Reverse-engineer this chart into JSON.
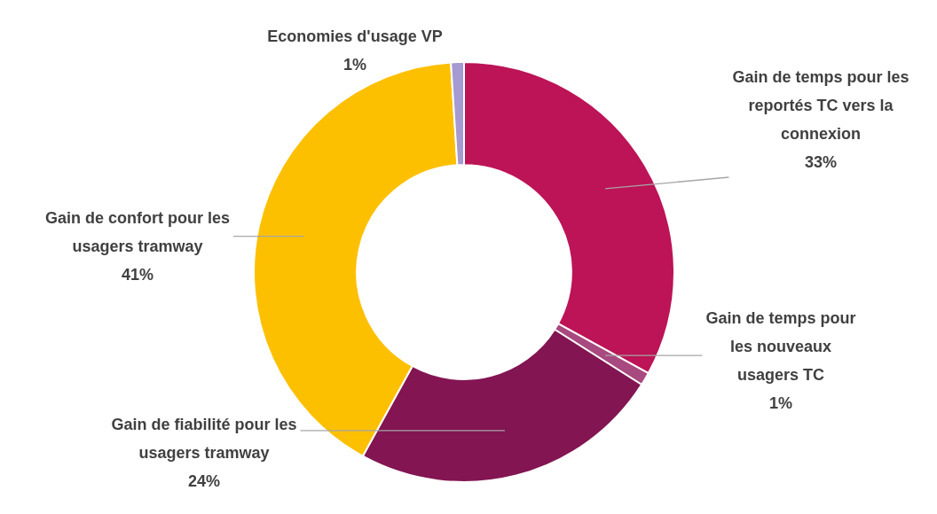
{
  "chart_data": {
    "type": "donut",
    "categories": [
      "Gain de temps pour les reportés TC vers la connexion",
      "Gain de temps pour les nouveaux usagers TC",
      "Gain de fiabilité pour les usagers tramway",
      "Gain de confort pour les usagers tramway",
      "Economies d'usage VP"
    ],
    "values": [
      33,
      1,
      24,
      41,
      1
    ],
    "value_labels": [
      "33%",
      "1%",
      "24%",
      "41%",
      "1%"
    ],
    "colors": [
      "#bc1456",
      "#a8497f",
      "#821552",
      "#fdc000",
      "#a59bd1"
    ],
    "legend": false
  }
}
